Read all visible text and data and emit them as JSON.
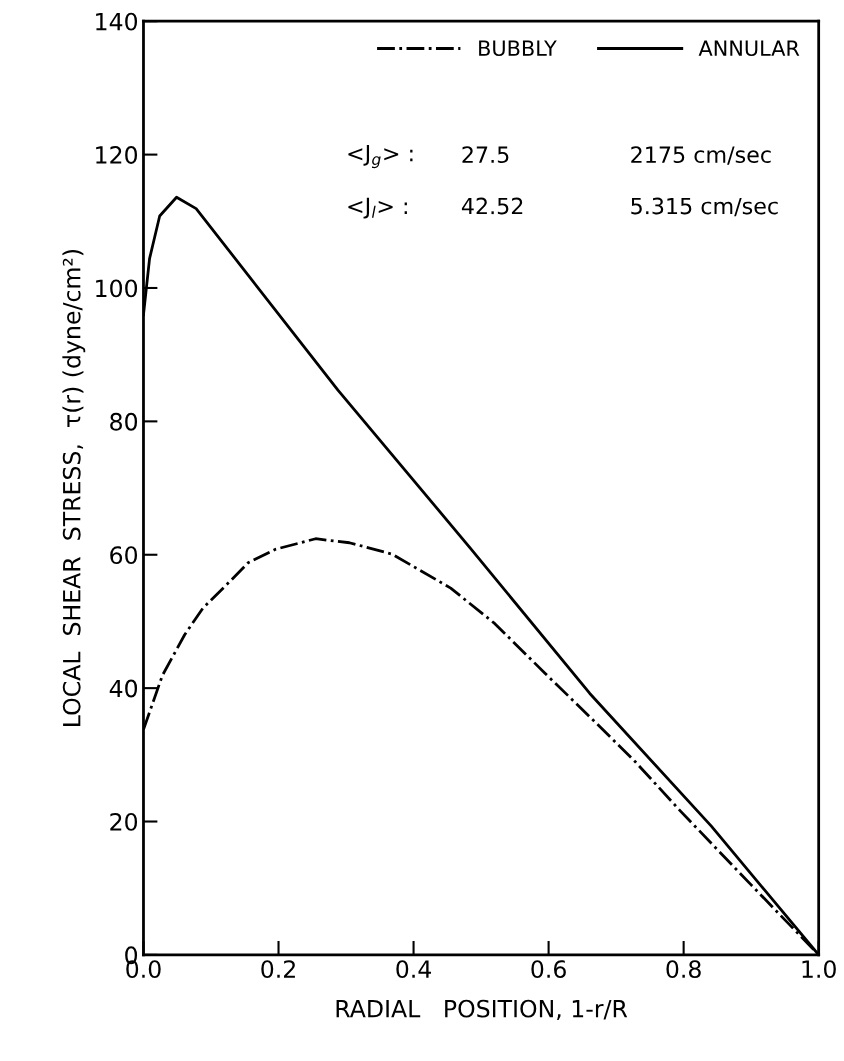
{
  "chart_data": {
    "type": "line",
    "xlabel": "RADIAL   POSITION, 1-r/R",
    "ylabel": "LOCAL  SHEAR  STRESS,  τ(r) (dyne/cm²)",
    "xlim": [
      0,
      1
    ],
    "ylim": [
      0,
      140
    ],
    "xticks": [
      {
        "value": 0,
        "label": "0.0"
      },
      0.2,
      0.4,
      0.6,
      0.8,
      {
        "value": 1,
        "label": "1.0"
      }
    ],
    "yticks": [
      0,
      20,
      40,
      60,
      80,
      100,
      120,
      140
    ],
    "grid": false,
    "legend": "top right",
    "series": [
      {
        "name": "BUBBLY",
        "color": "#000000",
        "line_style": "dashdot",
        "x": [
          0,
          0.028,
          0.061,
          0.088,
          0.128,
          0.155,
          0.195,
          0.255,
          0.305,
          0.368,
          0.455,
          0.52,
          0.595,
          0.66,
          0.728,
          0.795,
          0.9,
          1.0
        ],
        "values": [
          33.8,
          41.9,
          48,
          52,
          56,
          58.8,
          60.8,
          62.4,
          61.8,
          60.1,
          55,
          49.7,
          42.2,
          35.8,
          29,
          21.6,
          10.5,
          0
        ]
      },
      {
        "name": "ANNULAR",
        "color": "#000000",
        "line_style": "solid",
        "x": [
          0,
          0.009,
          0.024,
          0.049,
          0.078,
          0.288,
          0.484,
          0.661,
          0.841,
          1.0
        ],
        "values": [
          96,
          104.4,
          110.8,
          113.6,
          111.9,
          84.7,
          61,
          39.2,
          19.3,
          0
        ]
      }
    ],
    "annotations": [
      "<J$_{g}$> :",
      "27.5",
      "2175 cm/sec",
      "<J$_{l}$> :",
      "42.52",
      "5.315 cm/sec"
    ]
  }
}
